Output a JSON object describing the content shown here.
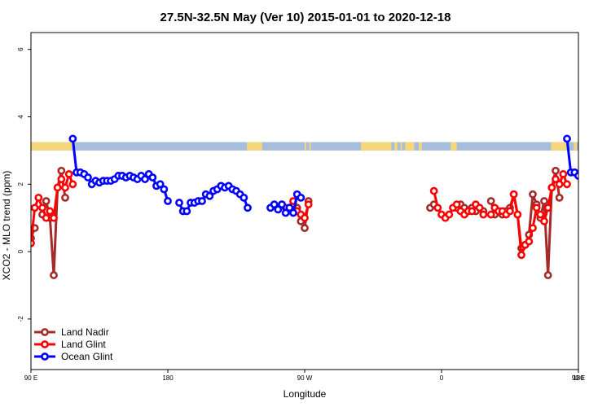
{
  "colors": {
    "land_nadir": "#a52a2a",
    "land_glint": "#ff0000",
    "ocean_glint": "#0000ff",
    "land_strip": "#f5d67a",
    "ocean_strip": "#a6bedb"
  },
  "chart_data": {
    "type": "line",
    "title": "27.5N-32.5N May (Ver 10)   2015-01-01 to 2020-12-18",
    "xlabel": "Longitude",
    "ylabel": "XCO2 - MLO trend (ppm)",
    "xlim": [
      90,
      450
    ],
    "ylim": [
      -3.5,
      6.5
    ],
    "x_ticks": [
      {
        "value": 90,
        "label": "90 E"
      },
      {
        "value": 180,
        "label": "180"
      },
      {
        "value": 270,
        "label": "90 W"
      },
      {
        "value": 360,
        "label": "0"
      },
      {
        "value": 450,
        "label": "90 E"
      },
      {
        "value": 540,
        "label": "180"
      }
    ],
    "y_ticks": [
      {
        "value": -2,
        "label": "-2"
      },
      {
        "value": 0,
        "label": "0"
      },
      {
        "value": 2,
        "label": "2"
      },
      {
        "value": 4,
        "label": "4"
      },
      {
        "value": 6,
        "label": "6"
      }
    ],
    "grid": false,
    "legend_position": "bottom-left",
    "series": [
      {
        "name": "Land Nadir",
        "color_key": "land_nadir",
        "points": [
          [
            90,
            0.4
          ],
          [
            92.5,
            0.7
          ],
          [
            97.5,
            1.1
          ],
          [
            100,
            1.5
          ],
          [
            102.5,
            1.0
          ],
          [
            105,
            -0.7
          ],
          [
            107.5,
            1.9
          ],
          [
            110,
            2.4
          ],
          [
            112.5,
            1.6
          ],
          [
            262.5,
            1.4
          ],
          [
            265,
            1.3
          ],
          [
            267.5,
            0.9
          ],
          [
            270,
            0.7
          ],
          [
            272.5,
            1.5
          ],
          [
            352.5,
            1.3
          ],
          [
            355,
            1.4
          ],
          [
            370,
            1.3
          ],
          [
            372.5,
            1.4
          ],
          [
            375,
            1.3
          ],
          [
            377.5,
            1.2
          ],
          [
            380,
            1.3
          ],
          [
            382.5,
            1.2
          ],
          [
            387.5,
            1.2
          ],
          [
            392.5,
            1.5
          ],
          [
            395,
            1.1
          ],
          [
            400,
            1.1
          ],
          [
            402.5,
            1.2
          ],
          [
            405,
            1.3
          ],
          [
            407.5,
            1.7
          ],
          [
            410,
            1.1
          ],
          [
            412.5,
            0.1
          ],
          [
            415,
            0.2
          ],
          [
            417.5,
            0.5
          ],
          [
            420,
            1.7
          ],
          [
            422.5,
            1.4
          ],
          [
            425,
            1.0
          ],
          [
            427.5,
            1.5
          ],
          [
            430,
            -0.7
          ],
          [
            432.5,
            1.9
          ],
          [
            435,
            2.4
          ],
          [
            437.5,
            1.6
          ]
        ]
      },
      {
        "name": "Land Glint",
        "color_key": "land_glint",
        "points": [
          [
            90,
            0.25
          ],
          [
            92.5,
            1.3
          ],
          [
            95,
            1.6
          ],
          [
            97.5,
            1.3
          ],
          [
            100,
            1.0
          ],
          [
            102.5,
            1.2
          ],
          [
            105,
            1.0
          ],
          [
            107.5,
            1.9
          ],
          [
            110,
            2.15
          ],
          [
            112.5,
            1.9
          ],
          [
            115,
            2.3
          ],
          [
            117.5,
            2.0
          ],
          [
            255,
            1.4
          ],
          [
            257.5,
            1.3
          ],
          [
            260,
            1.3
          ],
          [
            262.5,
            1.5
          ],
          [
            265,
            1.2
          ],
          [
            267.5,
            1.1
          ],
          [
            270,
            1.0
          ],
          [
            272.5,
            1.4
          ],
          [
            355,
            1.8
          ],
          [
            357.5,
            1.3
          ],
          [
            360,
            1.1
          ],
          [
            362.5,
            1.0
          ],
          [
            365,
            1.1
          ],
          [
            367.5,
            1.3
          ],
          [
            370,
            1.4
          ],
          [
            372.5,
            1.2
          ],
          [
            375,
            1.1
          ],
          [
            377.5,
            1.2
          ],
          [
            380,
            1.2
          ],
          [
            382.5,
            1.4
          ],
          [
            385,
            1.3
          ],
          [
            387.5,
            1.1
          ],
          [
            392.5,
            1.1
          ],
          [
            395,
            1.3
          ],
          [
            397.5,
            1.2
          ],
          [
            400,
            1.2
          ],
          [
            402.5,
            1.1
          ],
          [
            405,
            1.2
          ],
          [
            407.5,
            1.7
          ],
          [
            410,
            1.1
          ],
          [
            412.5,
            -0.1
          ],
          [
            415,
            0.2
          ],
          [
            417.5,
            0.3
          ],
          [
            420,
            0.7
          ],
          [
            422.5,
            1.3
          ],
          [
            425,
            1.1
          ],
          [
            427.5,
            0.9
          ],
          [
            430,
            1.3
          ],
          [
            432.5,
            1.9
          ],
          [
            435,
            2.15
          ],
          [
            437.5,
            2.0
          ],
          [
            440,
            2.3
          ],
          [
            442.5,
            2.0
          ]
        ]
      },
      {
        "name": "Ocean Glint",
        "color_key": "ocean_glint",
        "points": [
          [
            117.5,
            3.35
          ],
          [
            120,
            2.35
          ],
          [
            122.5,
            2.35
          ],
          [
            125,
            2.3
          ],
          [
            127.5,
            2.2
          ],
          [
            130,
            2.0
          ],
          [
            132.5,
            2.1
          ],
          [
            135,
            2.05
          ],
          [
            137.5,
            2.1
          ],
          [
            140,
            2.1
          ],
          [
            142.5,
            2.1
          ],
          [
            145,
            2.15
          ],
          [
            147.5,
            2.25
          ],
          [
            150,
            2.25
          ],
          [
            152.5,
            2.2
          ],
          [
            155,
            2.25
          ],
          [
            157.5,
            2.2
          ],
          [
            160,
            2.15
          ],
          [
            162.5,
            2.25
          ],
          [
            165,
            2.15
          ],
          [
            167.5,
            2.3
          ],
          [
            170,
            2.2
          ],
          [
            172.5,
            1.95
          ],
          [
            175,
            2.0
          ],
          [
            177.5,
            1.85
          ],
          [
            180,
            1.5
          ],
          [
            187.5,
            1.45
          ],
          [
            190,
            1.2
          ],
          [
            192.5,
            1.2
          ],
          [
            195,
            1.45
          ],
          [
            197.5,
            1.45
          ],
          [
            200,
            1.5
          ],
          [
            202.5,
            1.5
          ],
          [
            205,
            1.7
          ],
          [
            207.5,
            1.65
          ],
          [
            210,
            1.8
          ],
          [
            212.5,
            1.85
          ],
          [
            215,
            1.95
          ],
          [
            217.5,
            1.9
          ],
          [
            220,
            1.95
          ],
          [
            222.5,
            1.85
          ],
          [
            225,
            1.8
          ],
          [
            227.5,
            1.7
          ],
          [
            230,
            1.6
          ],
          [
            232.5,
            1.3
          ],
          [
            247.5,
            1.3
          ],
          [
            250,
            1.4
          ],
          [
            252.5,
            1.25
          ],
          [
            255,
            1.4
          ],
          [
            257.5,
            1.15
          ],
          [
            260,
            1.3
          ],
          [
            262.5,
            1.15
          ],
          [
            265,
            1.7
          ],
          [
            267.5,
            1.6
          ],
          [
            442.5,
            3.35
          ],
          [
            445,
            2.35
          ],
          [
            447.5,
            2.35
          ],
          [
            450,
            2.25
          ]
        ]
      },
      {
        "name": "",
        "color_key": "ocean_glint",
        "legend": false,
        "points": [
          [
            450,
            2.25
          ],
          [
            452.5,
            2.2
          ],
          [
            455,
            2.05
          ],
          [
            457.5,
            2.05
          ],
          [
            460,
            2.05
          ],
          [
            462.5,
            2.1
          ],
          [
            465,
            2.15
          ],
          [
            467.5,
            2.1
          ],
          [
            470,
            2.15
          ],
          [
            472.5,
            2.2
          ]
        ]
      }
    ],
    "surface_strip": {
      "y_range": [
        3.0,
        3.25
      ],
      "land_segments": [
        [
          90,
          117
        ],
        [
          232,
          242
        ],
        [
          270,
          271
        ],
        [
          273,
          274
        ],
        [
          307,
          327
        ],
        [
          329,
          331
        ],
        [
          333,
          334
        ],
        [
          336,
          342
        ],
        [
          345,
          347
        ],
        [
          366,
          370
        ],
        [
          432,
          442
        ],
        [
          447,
          449
        ]
      ]
    }
  }
}
